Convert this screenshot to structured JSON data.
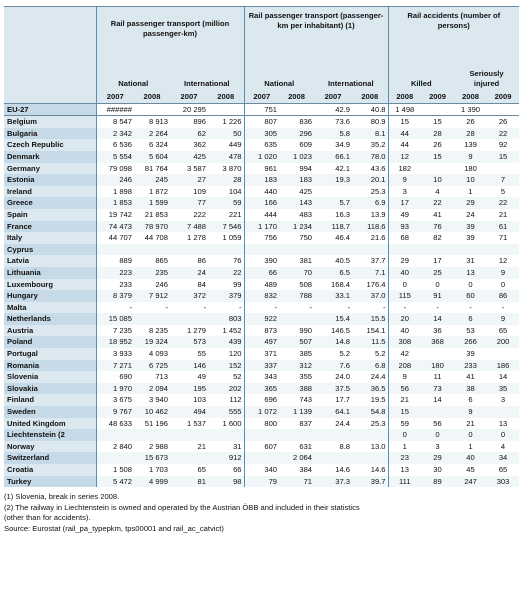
{
  "header": {
    "group1": "Rail passenger transport (million passenger-km)",
    "group2": "Rail passenger transport (passenger-km per inhabitant) (1)",
    "group3": "Rail accidents (number of persons)",
    "national": "National",
    "international": "International",
    "killed": "Killed",
    "seriously_injured": "Seriously injured",
    "years": [
      "2007",
      "2008",
      "2007",
      "2008",
      "2007",
      "2008",
      "2007",
      "2008",
      "2008",
      "2009",
      "2008",
      "2009"
    ]
  },
  "rows": [
    {
      "name": "EU-27",
      "v": [
        "######",
        "",
        "20 295",
        "",
        "751",
        "",
        "42.9",
        "40.8",
        "1 498",
        "",
        "1 390",
        ""
      ]
    },
    {
      "name": "Belgium",
      "v": [
        "8 547",
        "8 913",
        "896",
        "1 226",
        "807",
        "836",
        "73.6",
        "80.9",
        "15",
        "15",
        "26",
        "26"
      ]
    },
    {
      "name": "Bulgaria",
      "v": [
        "2 342",
        "2 264",
        "62",
        "50",
        "305",
        "296",
        "5.8",
        "8.1",
        "44",
        "28",
        "28",
        "22"
      ]
    },
    {
      "name": "Czech Republic",
      "v": [
        "6 536",
        "6 324",
        "362",
        "449",
        "635",
        "609",
        "34.9",
        "35.2",
        "44",
        "26",
        "139",
        "92"
      ]
    },
    {
      "name": "Denmark",
      "v": [
        "5 554",
        "5 604",
        "425",
        "478",
        "1 020",
        "1 023",
        "66.1",
        "78.0",
        "12",
        "15",
        "9",
        "15"
      ]
    },
    {
      "name": "Germany",
      "v": [
        "79 098",
        "81 764",
        "3 587",
        "3 870",
        "961",
        "994",
        "42.1",
        "43.6",
        "182",
        "",
        "180",
        ""
      ]
    },
    {
      "name": "Estonia",
      "v": [
        "246",
        "245",
        "27",
        "28",
        "183",
        "183",
        "19.3",
        "20.1",
        "9",
        "10",
        "10",
        "7"
      ]
    },
    {
      "name": "Ireland",
      "v": [
        "1 898",
        "1 872",
        "109",
        "104",
        "440",
        "425",
        "",
        "25.3",
        "3",
        "4",
        "1",
        "5"
      ]
    },
    {
      "name": "Greece",
      "v": [
        "1 853",
        "1 599",
        "77",
        "59",
        "166",
        "143",
        "5.7",
        "6.9",
        "17",
        "22",
        "29",
        "22"
      ]
    },
    {
      "name": "Spain",
      "v": [
        "19 742",
        "21 853",
        "222",
        "221",
        "444",
        "483",
        "16.3",
        "13.9",
        "49",
        "41",
        "24",
        "21"
      ]
    },
    {
      "name": "France",
      "v": [
        "74 473",
        "78 970",
        "7 488",
        "7 546",
        "1 170",
        "1 234",
        "118.7",
        "118.6",
        "93",
        "76",
        "39",
        "61"
      ]
    },
    {
      "name": "Italy",
      "v": [
        "44 707",
        "44 708",
        "1 278",
        "1 059",
        "756",
        "750",
        "46.4",
        "21.6",
        "68",
        "82",
        "39",
        "71"
      ]
    },
    {
      "name": "Cyprus",
      "v": [
        "",
        "",
        "",
        "",
        "",
        "",
        "",
        "",
        "",
        "",
        "",
        ""
      ]
    },
    {
      "name": "Latvia",
      "v": [
        "889",
        "865",
        "86",
        "76",
        "390",
        "381",
        "40.5",
        "37.7",
        "29",
        "17",
        "31",
        "12"
      ]
    },
    {
      "name": "Lithuania",
      "v": [
        "223",
        "235",
        "24",
        "22",
        "66",
        "70",
        "6.5",
        "7.1",
        "40",
        "25",
        "13",
        "9"
      ]
    },
    {
      "name": "Luxembourg",
      "v": [
        "233",
        "246",
        "84",
        "99",
        "489",
        "508",
        "168.4",
        "176.4",
        "0",
        "0",
        "0",
        "0"
      ]
    },
    {
      "name": "Hungary",
      "v": [
        "8 379",
        "7 912",
        "372",
        "379",
        "832",
        "788",
        "33.1",
        "37.0",
        "115",
        "91",
        "60",
        "86"
      ]
    },
    {
      "name": "Malta",
      "v": [
        "-",
        "-",
        "-",
        "-",
        "-",
        "-",
        "-",
        "-",
        "-",
        "-",
        "-",
        "-"
      ]
    },
    {
      "name": "Netherlands",
      "v": [
        "15 085",
        "",
        "",
        "803",
        "922",
        "",
        "15.4",
        "15.5",
        "20",
        "14",
        "6",
        "9"
      ]
    },
    {
      "name": "Austria",
      "v": [
        "7 235",
        "8 235",
        "1 279",
        "1 452",
        "873",
        "990",
        "146.5",
        "154.1",
        "40",
        "36",
        "53",
        "65"
      ]
    },
    {
      "name": "Poland",
      "v": [
        "18 952",
        "19 324",
        "573",
        "439",
        "497",
        "507",
        "14.8",
        "11.5",
        "308",
        "368",
        "266",
        "200"
      ]
    },
    {
      "name": "Portugal",
      "v": [
        "3 933",
        "4 093",
        "55",
        "120",
        "371",
        "385",
        "5.2",
        "5.2",
        "42",
        "",
        "39",
        ""
      ]
    },
    {
      "name": "Romania",
      "v": [
        "7 271",
        "6 725",
        "146",
        "152",
        "337",
        "312",
        "7.6",
        "6.8",
        "208",
        "180",
        "233",
        "186"
      ]
    },
    {
      "name": "Slovenia",
      "v": [
        "690",
        "713",
        "49",
        "52",
        "343",
        "355",
        "24.0",
        "24.4",
        "9",
        "11",
        "41",
        "14"
      ]
    },
    {
      "name": "Slovakia",
      "v": [
        "1 970",
        "2 094",
        "195",
        "202",
        "365",
        "388",
        "37.5",
        "36.5",
        "56",
        "73",
        "38",
        "35"
      ]
    },
    {
      "name": "Finland",
      "v": [
        "3 675",
        "3 940",
        "103",
        "112",
        "696",
        "743",
        "17.7",
        "19.5",
        "21",
        "14",
        "6",
        "3"
      ]
    },
    {
      "name": "Sweden",
      "v": [
        "9 767",
        "10 462",
        "494",
        "555",
        "1 072",
        "1 139",
        "64.1",
        "54.8",
        "15",
        "",
        "9",
        ""
      ]
    },
    {
      "name": "United Kingdom",
      "v": [
        "48 633",
        "51 196",
        "1 537",
        "1 600",
        "800",
        "837",
        "24.4",
        "25.3",
        "59",
        "56",
        "21",
        "13"
      ]
    },
    {
      "name": "Liechtenstein (2",
      "v": [
        "",
        "",
        "",
        "",
        "",
        "",
        "",
        "",
        "0",
        "0",
        "0",
        "0"
      ]
    },
    {
      "name": "Norway",
      "v": [
        "2 840",
        "2 988",
        "21",
        "31",
        "607",
        "631",
        "8.8",
        "13.0",
        "1",
        "3",
        "1",
        "4"
      ]
    },
    {
      "name": "Switzerland",
      "v": [
        "",
        "15 673",
        "",
        "912",
        "",
        "2 064",
        "",
        "",
        "23",
        "29",
        "40",
        "34"
      ]
    },
    {
      "name": "Croatia",
      "v": [
        "1 508",
        "1 703",
        "65",
        "66",
        "340",
        "384",
        "14.6",
        "14.6",
        "13",
        "30",
        "45",
        "65"
      ]
    },
    {
      "name": "Turkey",
      "v": [
        "5 472",
        "4 999",
        "81",
        "98",
        "79",
        "71",
        "37.3",
        "39.7",
        "111",
        "89",
        "247",
        "303"
      ]
    }
  ],
  "notes": [
    "(1) Slovenia, break in series 2008.",
    "(2) The railway in Liechtenstein is owned and operated by the Austrian ÖBB and included in their statistics",
    "(other than for accidents).",
    "Source: Eurostat (rail_pa_typepkm, tps00001 and rail_ac_catvict)"
  ]
}
